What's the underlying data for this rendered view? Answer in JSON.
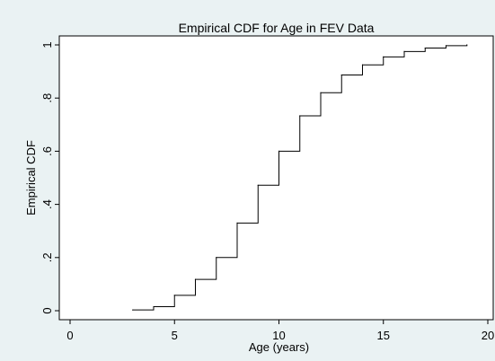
{
  "chart_data": {
    "type": "line",
    "subtype": "step",
    "title": "Empirical CDF for Age in FEV Data",
    "xlabel": "Age (years)",
    "ylabel": "Empirical CDF",
    "xlim": [
      0,
      20
    ],
    "ylim": [
      0,
      1
    ],
    "x_ticks": [
      0,
      5,
      10,
      15,
      20
    ],
    "x_tick_labels": [
      "0",
      "5",
      "10",
      "15",
      "20"
    ],
    "y_ticks": [
      0,
      0.2,
      0.4,
      0.6,
      0.8,
      1
    ],
    "y_tick_labels": [
      "0",
      ".2",
      ".4",
      ".6",
      ".8",
      "1"
    ],
    "grid": false,
    "legend": "none",
    "series": [
      {
        "x": [
          3,
          4,
          5,
          6,
          7,
          8,
          9,
          10,
          11,
          12,
          13,
          14,
          15,
          16,
          17,
          18,
          19
        ],
        "y": [
          0.003,
          0.015,
          0.058,
          0.118,
          0.2,
          0.33,
          0.472,
          0.6,
          0.733,
          0.82,
          0.887,
          0.925,
          0.955,
          0.975,
          0.988,
          0.997,
          1.0
        ]
      }
    ],
    "colors": {
      "background": "#eaf2f3",
      "plot_area": "#ffffff",
      "line": "#000000"
    }
  }
}
